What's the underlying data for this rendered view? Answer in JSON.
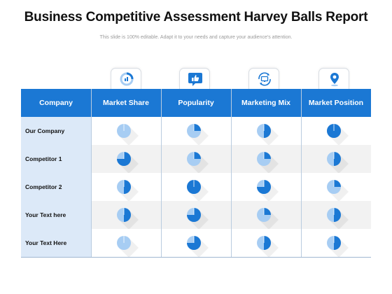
{
  "title": "Business Competitive Assessment Harvey Balls Report",
  "subtitle": "This slide is 100% editable. Adapt it to your needs and capture your audience's attention.",
  "colors": {
    "header_blue": "#1b78d4",
    "ball_fill": "#1b78d4",
    "ball_empty": "#a7cdf3",
    "company_column": "#dce9f8",
    "stripe": "#f2f2f2"
  },
  "icons": [
    "pie-chart-icon",
    "thumbs-up-icon",
    "monitor-cycle-icon",
    "location-pin-icon"
  ],
  "columns": [
    "Company",
    "Market Share",
    "Popularity",
    "Marketing Mix",
    "Market Position"
  ],
  "rows": [
    {
      "label": "Our Company",
      "values": [
        0,
        0.25,
        0.5,
        1
      ]
    },
    {
      "label": "Competitor 1",
      "values": [
        0.75,
        0.25,
        0.25,
        0.5
      ]
    },
    {
      "label": "Competitor 2",
      "values": [
        0.5,
        1,
        0.75,
        0.25
      ]
    },
    {
      "label": "Your Text here",
      "values": [
        0.5,
        0.75,
        0.25,
        0.5
      ]
    },
    {
      "label": "Your Text Here",
      "values": [
        0,
        0.75,
        0.5,
        0.5
      ]
    }
  ]
}
